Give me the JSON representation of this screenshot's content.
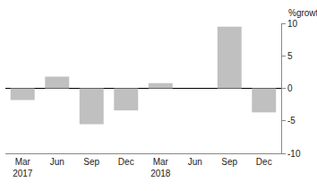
{
  "chart_data": {
    "type": "bar",
    "y_label": "%growth",
    "categories": [
      "Mar 2017",
      "Jun",
      "Sep",
      "Dec",
      "Mar 2018",
      "Jun",
      "Sep",
      "Dec"
    ],
    "values": [
      -1.8,
      1.8,
      -5.5,
      -3.4,
      0.8,
      0,
      9.5,
      -3.7
    ],
    "color": "#c0c0c0",
    "ylim": [
      -10,
      10
    ],
    "yticks": [
      -10,
      -5,
      0,
      5,
      10
    ],
    "grid": true
  }
}
